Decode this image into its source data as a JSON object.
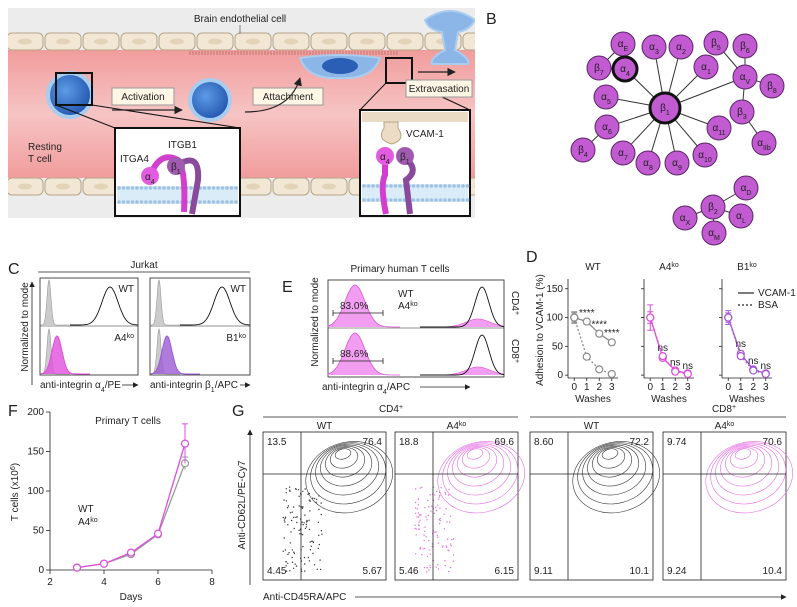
{
  "letters": {
    "a": "A",
    "b": "B",
    "c": "C",
    "d": "D",
    "e": "E",
    "f": "F",
    "g": "G"
  },
  "panel_a": {
    "endothelial_label": "Brain endothelial cell",
    "activation": "Activation",
    "attachment": "Attachment",
    "extravasation": "Extravasation",
    "resting_cell": [
      "Resting",
      "T cell"
    ],
    "itgb1": "ITGB1",
    "itga4": "ITGA4",
    "vcam": "VCAM-1",
    "box1_subunits": [
      {
        "base": "α",
        "sub": "4"
      },
      {
        "base": "β",
        "sub": "1"
      }
    ],
    "box2_subunits": [
      {
        "base": "α",
        "sub": "4"
      },
      {
        "base": "β",
        "sub": "1"
      }
    ]
  },
  "panel_b": {
    "nodes": [
      {
        "base": "α",
        "sub": "E"
      },
      {
        "base": "β",
        "sub": "7"
      },
      {
        "base": "α",
        "sub": "4"
      },
      {
        "base": "α",
        "sub": "3"
      },
      {
        "base": "α",
        "sub": "2"
      },
      {
        "base": "α",
        "sub": "1"
      },
      {
        "base": "β",
        "sub": "5"
      },
      {
        "base": "β",
        "sub": "6"
      },
      {
        "base": "α",
        "sub": "V"
      },
      {
        "base": "β",
        "sub": "8"
      },
      {
        "base": "β",
        "sub": "3"
      },
      {
        "base": "α",
        "sub": "IIb"
      },
      {
        "base": "α",
        "sub": "5"
      },
      {
        "base": "β",
        "sub": "1"
      },
      {
        "base": "α",
        "sub": "11"
      },
      {
        "base": "α",
        "sub": "6"
      },
      {
        "base": "β",
        "sub": "4"
      },
      {
        "base": "α",
        "sub": "7"
      },
      {
        "base": "α",
        "sub": "8"
      },
      {
        "base": "α",
        "sub": "9"
      },
      {
        "base": "α",
        "sub": "10"
      },
      {
        "base": "β",
        "sub": "2"
      },
      {
        "base": "α",
        "sub": "D"
      },
      {
        "base": "α",
        "sub": "X"
      },
      {
        "base": "α",
        "sub": "L"
      },
      {
        "base": "α",
        "sub": "M"
      }
    ]
  },
  "panel_c": {
    "title": "Jurkat",
    "y_label": "Normalized to mode",
    "plots": [
      {
        "top_label": "WT",
        "bottom_label": {
          "text": "A4",
          "sup": "ko"
        },
        "x_label": {
          "text": "anti-integrin α",
          "sub": "4",
          "end": "/PE"
        }
      },
      {
        "top_label": "WT",
        "bottom_label": {
          "text": "B1",
          "sup": "ko"
        },
        "x_label": {
          "text": "anti-integrin β",
          "sub": "1",
          "end": "/APC"
        }
      }
    ]
  },
  "panel_e": {
    "title": "Primary human T cells",
    "legend": [
      {
        "text": "WT"
      },
      {
        "text": "A4",
        "sup": "ko"
      }
    ],
    "rows": [
      {
        "label": {
          "text": "CD4",
          "sup": "+"
        },
        "gate": "83.0%"
      },
      {
        "label": {
          "text": "CD8",
          "sup": "+"
        },
        "gate": "88.6%"
      }
    ],
    "y_label": "Normalized to mode",
    "x_label": {
      "text": "anti-integrin α",
      "sub": "4",
      "end": "/APC"
    }
  },
  "panel_g": {
    "groups": [
      {
        "text": "CD4",
        "sup": "+"
      },
      {
        "text": "CD8",
        "sup": "+"
      }
    ],
    "plots": [
      {
        "title": {
          "text": "WT"
        },
        "quadrants": [
          "13.5",
          "76.4",
          "4.45",
          "5.67"
        ]
      },
      {
        "title": {
          "text": "A4",
          "sup": "ko"
        },
        "quadrants": [
          "18.8",
          "69.6",
          "5.46",
          "6.15"
        ]
      },
      {
        "title": {
          "text": "WT"
        },
        "quadrants": [
          "8.60",
          "72.2",
          "9.11",
          "10.1"
        ]
      },
      {
        "title": {
          "text": "A4",
          "sup": "ko"
        },
        "quadrants": [
          "9.74",
          "70.6",
          "9.24",
          "10.4"
        ]
      }
    ],
    "y_label": "Anti-CD62L/PE-Cy7",
    "x_label": "Anti-CD45RA/APC"
  },
  "chart_data": [
    {
      "type": "line",
      "y_label": "Adhesion to VCAM-1 (%)",
      "x": [
        0,
        1,
        2,
        3
      ],
      "xlim": [
        -0.5,
        3.5
      ],
      "ylim": [
        -5,
        160
      ],
      "yticks": [
        0,
        50,
        100,
        150
      ],
      "legend": [
        {
          "name": "VCAM-1",
          "dash": false
        },
        {
          "name": "BSA",
          "dash": true
        }
      ],
      "panels": [
        {
          "title": {
            "text": "WT"
          },
          "x_label": "Washes",
          "xticks": [
            0,
            1,
            2,
            3
          ],
          "color": "#8a8a8a",
          "series": [
            {
              "values": [
                100,
                93,
                72,
                57
              ],
              "errors": [
                10,
                3,
                4,
                4
              ],
              "annotations": [
                null,
                "****",
                "****",
                "****"
              ]
            },
            {
              "values": [
                100,
                32,
                10,
                2
              ],
              "errors": [
                8,
                2,
                2,
                1
              ]
            }
          ]
        },
        {
          "title": {
            "text": "A4",
            "sup": "ko"
          },
          "x_label": "Washes",
          "xticks": [
            0,
            1,
            2,
            3
          ],
          "color": "#df4fdc",
          "series": [
            {
              "values": [
                100,
                30,
                8,
                3
              ],
              "errors": [
                22,
                5,
                2,
                1
              ],
              "annotations": [
                null,
                "ns",
                "ns",
                "ns"
              ]
            },
            {
              "values": [
                100,
                33,
                6,
                2
              ],
              "errors": [
                10,
                3,
                2,
                1
              ]
            }
          ]
        },
        {
          "title": {
            "text": "B1",
            "sup": "ko"
          },
          "x_label": "Washes",
          "xticks": [
            0,
            1,
            2,
            3
          ],
          "color": "#a557d6",
          "series": [
            {
              "values": [
                100,
                37,
                10,
                3
              ],
              "errors": [
                12,
                5,
                2,
                1
              ],
              "annotations": [
                null,
                "ns",
                "ns",
                "ns"
              ]
            },
            {
              "values": [
                100,
                33,
                8,
                2
              ],
              "errors": [
                8,
                3,
                2,
                1
              ]
            }
          ]
        }
      ]
    },
    {
      "type": "line",
      "title": "Primary T cells",
      "x_label": "Days",
      "y_label": {
        "text": "T cells (x10",
        "sup": "6",
        "end": ")"
      },
      "x": [
        3,
        4,
        5,
        6,
        7
      ],
      "xlim": [
        2,
        8
      ],
      "xticks": [
        2,
        4,
        6,
        8
      ],
      "ylim": [
        0,
        200
      ],
      "yticks": [
        0,
        50,
        100,
        150,
        200
      ],
      "series": [
        {
          "name": {
            "text": "WT"
          },
          "color": "#9a9a9a",
          "values": [
            3,
            8,
            20,
            45,
            135
          ],
          "errors": [
            1,
            1,
            2,
            3,
            8
          ]
        },
        {
          "name": {
            "text": "A4",
            "sup": "ko"
          },
          "color": "#df4fdc",
          "values": [
            3,
            8,
            22,
            46,
            160
          ],
          "errors": [
            1,
            1,
            2,
            3,
            25
          ]
        }
      ]
    }
  ]
}
